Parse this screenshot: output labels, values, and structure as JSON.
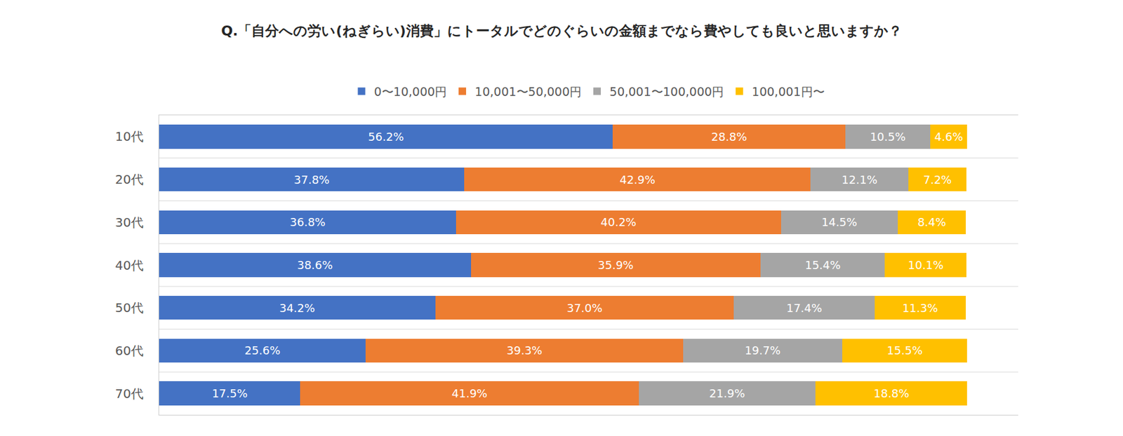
{
  "chart_data": {
    "type": "bar",
    "title": "Q.「自分への労い(ねぎらい)消費」にトータルでどのぐらいの金額までなら費やしても良いと思いますか？",
    "orientation": "horizontal",
    "stacked": true,
    "data_labels": true,
    "tick_labels": "y",
    "legend": "top",
    "grid": true,
    "xlim": [
      0,
      106.4
    ],
    "categories": [
      "10代",
      "20代",
      "30代",
      "40代",
      "50代",
      "60代",
      "70代"
    ],
    "series": [
      {
        "name": "0〜10,000円",
        "color": "#4472c4",
        "values": [
          56.2,
          37.8,
          36.8,
          38.6,
          34.2,
          25.6,
          17.5
        ],
        "value_labels": [
          "56.2%",
          "37.8%",
          "36.8%",
          "38.6%",
          "34.2%",
          "25.6%",
          "17.5%"
        ]
      },
      {
        "name": "10,001〜50,000円",
        "color": "#ed7d31",
        "values": [
          28.8,
          42.9,
          40.2,
          35.9,
          37.0,
          39.3,
          41.9
        ],
        "value_labels": [
          "28.8%",
          "42.9%",
          "40.2%",
          "35.9%",
          "37.0%",
          "39.3%",
          "41.9%"
        ]
      },
      {
        "name": "50,001〜100,000円",
        "color": "#a5a5a5",
        "values": [
          10.5,
          12.1,
          14.5,
          15.4,
          17.4,
          19.7,
          21.9
        ],
        "value_labels": [
          "10.5%",
          "12.1%",
          "14.5%",
          "15.4%",
          "17.4%",
          "19.7%",
          "21.9%"
        ]
      },
      {
        "name": "100,001円〜",
        "color": "#ffc000",
        "values": [
          4.6,
          7.2,
          8.4,
          10.1,
          11.3,
          15.5,
          18.8
        ],
        "value_labels": [
          "4.6%",
          "7.2%",
          "8.4%",
          "10.1%",
          "11.3%",
          "15.5%",
          "18.8%"
        ]
      }
    ]
  }
}
